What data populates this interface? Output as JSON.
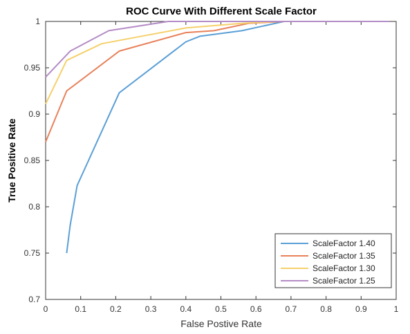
{
  "chart_data": {
    "type": "line",
    "title": "ROC Curve With Different Scale Factor",
    "xlabel": "False Postive Rate",
    "ylabel": "True Positive Rate",
    "xlim": [
      0,
      1
    ],
    "ylim": [
      0.7,
      1
    ],
    "x_ticks": [
      "0",
      "0.1",
      "0.2",
      "0.3",
      "0.4",
      "0.5",
      "0.6",
      "0.7",
      "0.8",
      "0.9",
      "1"
    ],
    "y_ticks": [
      "0.7",
      "0.75",
      "0.8",
      "0.85",
      "0.9",
      "0.95",
      "1"
    ],
    "grid": false,
    "legend_position": "bottom-right",
    "series": [
      {
        "name": "ScaleFactor 1.40",
        "color": "#5a9fd6",
        "x": [
          0.06,
          0.07,
          0.09,
          0.21,
          0.4,
          0.44,
          0.48,
          0.56,
          0.62,
          0.68,
          0.98
        ],
        "y": [
          0.75,
          0.78,
          0.823,
          0.923,
          0.978,
          0.984,
          0.986,
          0.99,
          0.995,
          1.0,
          1.0
        ]
      },
      {
        "name": "ScaleFactor 1.35",
        "color": "#e8815a",
        "x": [
          0.0,
          0.06,
          0.21,
          0.4,
          0.48,
          0.58,
          0.68,
          0.98
        ],
        "y": [
          0.87,
          0.925,
          0.968,
          0.988,
          0.99,
          0.998,
          1.0,
          1.0
        ]
      },
      {
        "name": "ScaleFactor 1.30",
        "color": "#f5d06a",
        "x": [
          0.0,
          0.06,
          0.16,
          0.4,
          0.56,
          0.66,
          0.98
        ],
        "y": [
          0.911,
          0.958,
          0.976,
          0.993,
          0.998,
          1.0,
          1.0
        ]
      },
      {
        "name": "ScaleFactor 1.25",
        "color": "#b48bc6",
        "x": [
          0.0,
          0.07,
          0.18,
          0.35,
          0.98
        ],
        "y": [
          0.94,
          0.968,
          0.99,
          1.0,
          1.0
        ]
      }
    ]
  }
}
